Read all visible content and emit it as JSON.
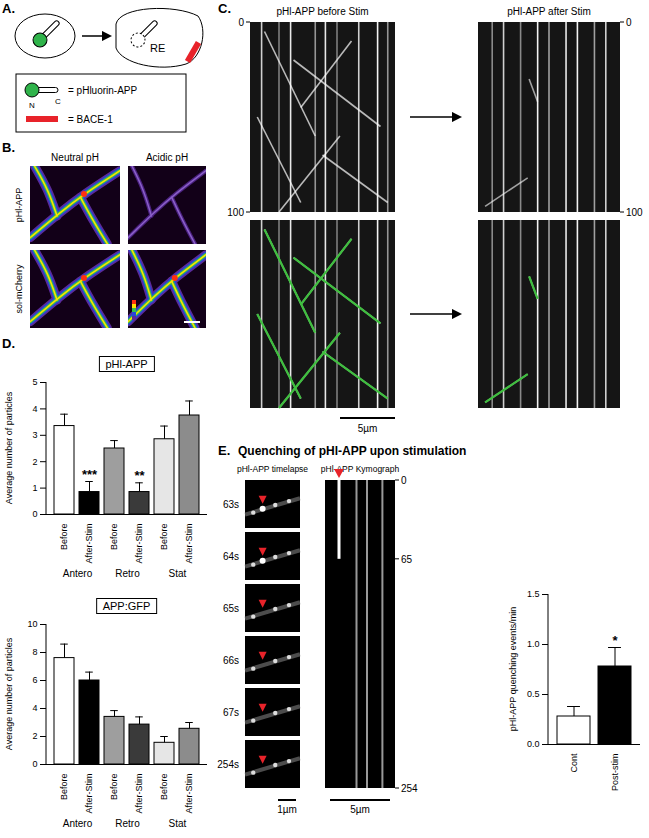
{
  "figure": {
    "A": {
      "label": "A.",
      "compartment": "RE",
      "legend": [
        {
          "text": "= pHluorin-APP",
          "n": "N",
          "c": "C"
        },
        {
          "text": "= BACE-1"
        }
      ]
    },
    "B": {
      "label": "B.",
      "columns": [
        "Neutral pH",
        "Acidic pH"
      ],
      "rows": [
        "pHl-APP",
        "sol-mCherry"
      ]
    },
    "C": {
      "label": "C.",
      "columns": [
        "pHl-APP before Stim",
        "pHl-APP after Stim"
      ],
      "time_ticks": [
        "0",
        "100"
      ],
      "scale_bar": "5µm"
    },
    "D": {
      "label": "D."
    },
    "E": {
      "label": "E.",
      "title": "Quenching of pHl-APP upon stimulation",
      "timelapse_title": "pHl-APP timelapse",
      "kymograph_title": "pHl-APP Kymograph",
      "frames": [
        "63s",
        "64s",
        "65s",
        "66s",
        "67s",
        "254s"
      ],
      "kymograph_ticks": [
        "0",
        "65",
        "254"
      ],
      "scale_bars": [
        "1µm",
        "5µm"
      ]
    }
  },
  "chart_data": [
    {
      "type": "bar",
      "title": "pHl-APP",
      "ylabel": "Average number of particles",
      "categories": [
        "Before",
        "After-Stim",
        "Before",
        "After-Stim",
        "Before",
        "After-Stim"
      ],
      "groups": [
        "Antero",
        "Retro",
        "Stat"
      ],
      "values": [
        3.35,
        0.85,
        2.5,
        0.85,
        2.85,
        3.75
      ],
      "errors": [
        0.45,
        0.4,
        0.3,
        0.35,
        0.5,
        0.55
      ],
      "significance": [
        null,
        "***",
        null,
        "**",
        null,
        null
      ],
      "colors": [
        "#ffffff",
        "#000000",
        "#9e9e9e",
        "#3a3a3a",
        "#e6e6e6",
        "#8c8c8c"
      ],
      "ylim": [
        0,
        5
      ],
      "yticks": [
        0,
        1,
        2,
        3,
        4,
        5
      ]
    },
    {
      "type": "bar",
      "title": "APP:GFP",
      "ylabel": "Average number of particles",
      "categories": [
        "Before",
        "After-Stim",
        "Before",
        "After-Stim",
        "Before",
        "After-Stim"
      ],
      "groups": [
        "Antero",
        "Retro",
        "Stat"
      ],
      "values": [
        7.6,
        6.0,
        3.4,
        2.85,
        1.55,
        2.55
      ],
      "errors": [
        1.0,
        0.6,
        0.45,
        0.55,
        0.45,
        0.45
      ],
      "significance": [
        null,
        null,
        null,
        null,
        null,
        null
      ],
      "colors": [
        "#ffffff",
        "#000000",
        "#9e9e9e",
        "#3a3a3a",
        "#e6e6e6",
        "#8c8c8c"
      ],
      "ylim": [
        0,
        10
      ],
      "yticks": [
        0,
        2,
        4,
        6,
        8,
        10
      ]
    },
    {
      "type": "bar",
      "ylabel": "pHl-APP quenching events/min",
      "categories": [
        "Cont",
        "Post-stim"
      ],
      "values": [
        0.28,
        0.78
      ],
      "errors": [
        0.1,
        0.19
      ],
      "significance": [
        null,
        "*"
      ],
      "colors": [
        "#ffffff",
        "#000000"
      ],
      "ylim": [
        0,
        1.5
      ],
      "yticks": [
        {
          "value": 0,
          "label": "0.0"
        },
        {
          "value": 0.5,
          "label": "0.5"
        },
        {
          "value": 1,
          "label": "1.0"
        },
        {
          "value": 1.5,
          "label": "1.5"
        }
      ]
    }
  ]
}
